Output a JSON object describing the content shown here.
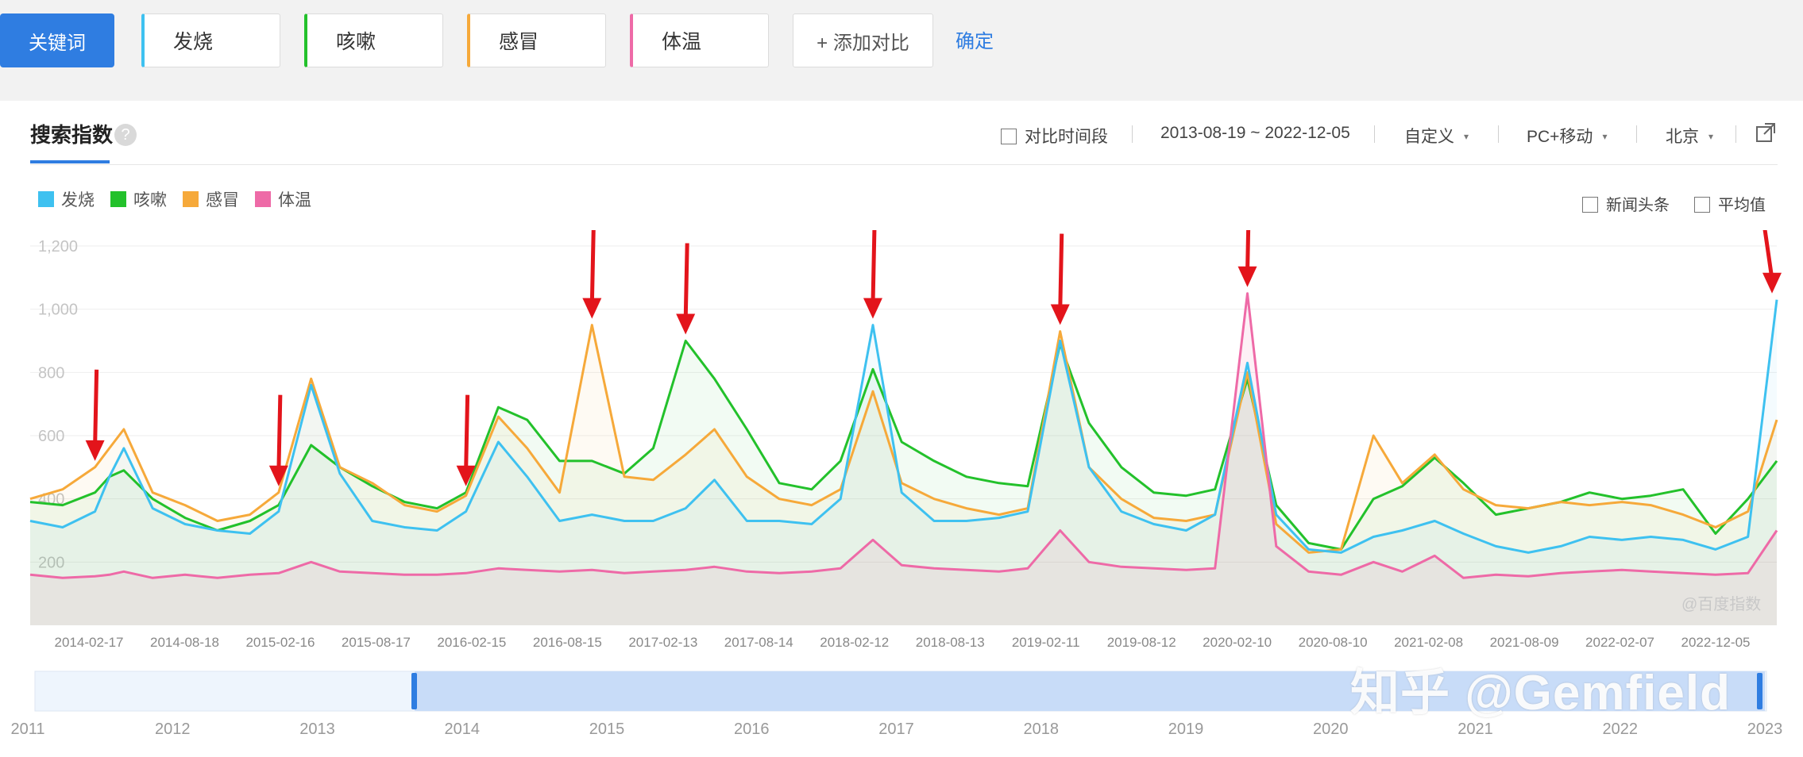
{
  "toolbar": {
    "keyword_label": "关键词",
    "keywords": [
      {
        "label": "发烧",
        "color": "#3ec1f0"
      },
      {
        "label": "咳嗽",
        "color": "#23c12b"
      },
      {
        "label": "感冒",
        "color": "#f6a93a"
      },
      {
        "label": "体温",
        "color": "#ee6aa7"
      }
    ],
    "add_label": "+ 添加对比",
    "confirm_label": "确定"
  },
  "panel": {
    "tab_title": "搜索指数",
    "help_icon": "?",
    "compare_period_label": "对比时间段",
    "date_range": "2013-08-19 ~ 2022-12-05",
    "custom_label": "自定义",
    "device_label": "PC+移动",
    "region_label": "北京",
    "news_label": "新闻头条",
    "average_label": "平均值",
    "caret_icon": "▾",
    "export_icon": "external-link-icon"
  },
  "navigator": {
    "years": [
      "2011",
      "2012",
      "2013",
      "2014",
      "2015",
      "2016",
      "2017",
      "2018",
      "2019",
      "2020",
      "2021",
      "2022",
      "2023"
    ]
  },
  "watermarks": {
    "zhihu": "知乎 @Gemfield",
    "baidu": "@百度指数"
  },
  "chart_data": {
    "type": "line",
    "ylim": [
      0,
      1200
    ],
    "yticks": [
      "200",
      "400",
      "600",
      "800",
      "1,000",
      "1,200"
    ],
    "ytick_values": [
      200,
      400,
      600,
      800,
      1000,
      1200
    ],
    "xtick_labels": [
      "2014-02-17",
      "2014-08-18",
      "2015-02-16",
      "2015-08-17",
      "2016-02-15",
      "2016-08-15",
      "2017-02-13",
      "2017-08-14",
      "2018-02-12",
      "2018-08-13",
      "2019-02-11",
      "2019-08-12",
      "2020-02-10",
      "2020-08-10",
      "2021-02-08",
      "2021-08-09",
      "2022-02-07",
      "2022-12-05"
    ],
    "x": [
      "2013-08-19",
      "2013-10-21",
      "2013-12-23",
      "2014-01-20",
      "2014-02-17",
      "2014-04-14",
      "2014-06-16",
      "2014-08-18",
      "2014-10-20",
      "2014-12-15",
      "2015-02-16",
      "2015-04-13",
      "2015-06-15",
      "2015-08-17",
      "2015-10-19",
      "2015-12-14",
      "2016-02-15",
      "2016-04-11",
      "2016-06-13",
      "2016-08-15",
      "2016-10-17",
      "2016-12-12",
      "2017-02-13",
      "2017-04-10",
      "2017-06-12",
      "2017-08-14",
      "2017-10-16",
      "2017-12-11",
      "2018-02-12",
      "2018-04-09",
      "2018-06-11",
      "2018-08-13",
      "2018-10-15",
      "2018-12-10",
      "2019-02-11",
      "2019-04-08",
      "2019-06-10",
      "2019-08-12",
      "2019-10-14",
      "2019-12-09",
      "2020-02-10",
      "2020-04-06",
      "2020-06-08",
      "2020-08-10",
      "2020-10-12",
      "2020-12-07",
      "2021-02-08",
      "2021-04-05",
      "2021-06-07",
      "2021-08-09",
      "2021-10-11",
      "2021-12-06",
      "2022-02-07",
      "2022-04-04",
      "2022-06-06",
      "2022-08-08",
      "2022-10-10",
      "2022-12-05"
    ],
    "series": [
      {
        "name": "发烧",
        "color": "#3ec1f0",
        "values": [
          330,
          310,
          360,
          470,
          560,
          370,
          320,
          300,
          290,
          360,
          760,
          480,
          330,
          310,
          300,
          360,
          580,
          470,
          330,
          350,
          330,
          330,
          370,
          460,
          330,
          330,
          320,
          400,
          950,
          420,
          330,
          330,
          340,
          360,
          900,
          500,
          360,
          320,
          300,
          350,
          830,
          350,
          240,
          230,
          280,
          300,
          330,
          290,
          250,
          230,
          250,
          280,
          270,
          280,
          270,
          240,
          280,
          1030
        ]
      },
      {
        "name": "咳嗽",
        "color": "#23c12b",
        "values": [
          390,
          380,
          420,
          470,
          490,
          400,
          340,
          300,
          330,
          380,
          570,
          500,
          440,
          390,
          370,
          420,
          690,
          650,
          520,
          520,
          480,
          560,
          900,
          780,
          620,
          450,
          430,
          520,
          810,
          580,
          520,
          470,
          450,
          440,
          890,
          640,
          500,
          420,
          410,
          430,
          780,
          380,
          260,
          240,
          400,
          440,
          530,
          450,
          350,
          370,
          390,
          420,
          400,
          410,
          430,
          290,
          400,
          520
        ]
      },
      {
        "name": "感冒",
        "color": "#f6a93a",
        "values": [
          400,
          430,
          500,
          560,
          620,
          420,
          380,
          330,
          350,
          420,
          780,
          500,
          450,
          380,
          360,
          410,
          660,
          560,
          420,
          950,
          470,
          460,
          540,
          620,
          470,
          400,
          380,
          430,
          740,
          450,
          400,
          370,
          350,
          370,
          930,
          500,
          400,
          340,
          330,
          350,
          800,
          320,
          230,
          240,
          600,
          450,
          540,
          430,
          380,
          370,
          390,
          380,
          390,
          380,
          350,
          310,
          360,
          650
        ]
      },
      {
        "name": "体温",
        "color": "#ee6aa7",
        "values": [
          160,
          150,
          155,
          160,
          170,
          150,
          160,
          150,
          160,
          165,
          200,
          170,
          165,
          160,
          160,
          165,
          180,
          175,
          170,
          175,
          165,
          170,
          175,
          185,
          170,
          165,
          170,
          180,
          270,
          190,
          180,
          175,
          170,
          180,
          300,
          200,
          185,
          180,
          175,
          180,
          1050,
          250,
          170,
          160,
          200,
          170,
          220,
          150,
          160,
          155,
          165,
          170,
          175,
          170,
          165,
          160,
          165,
          300
        ]
      }
    ],
    "annotations": {
      "type": "red-arrows",
      "count": 9,
      "points_at_dates": [
        "2013-12-23",
        "2014-12-15",
        "2015-12-14",
        "2016-08-15",
        "2017-02-13",
        "2018-02-12",
        "2019-02-11",
        "2020-02-10",
        "2022-12-05"
      ]
    },
    "navigator_selection": [
      "2013-08-19",
      "2022-12-05"
    ]
  }
}
